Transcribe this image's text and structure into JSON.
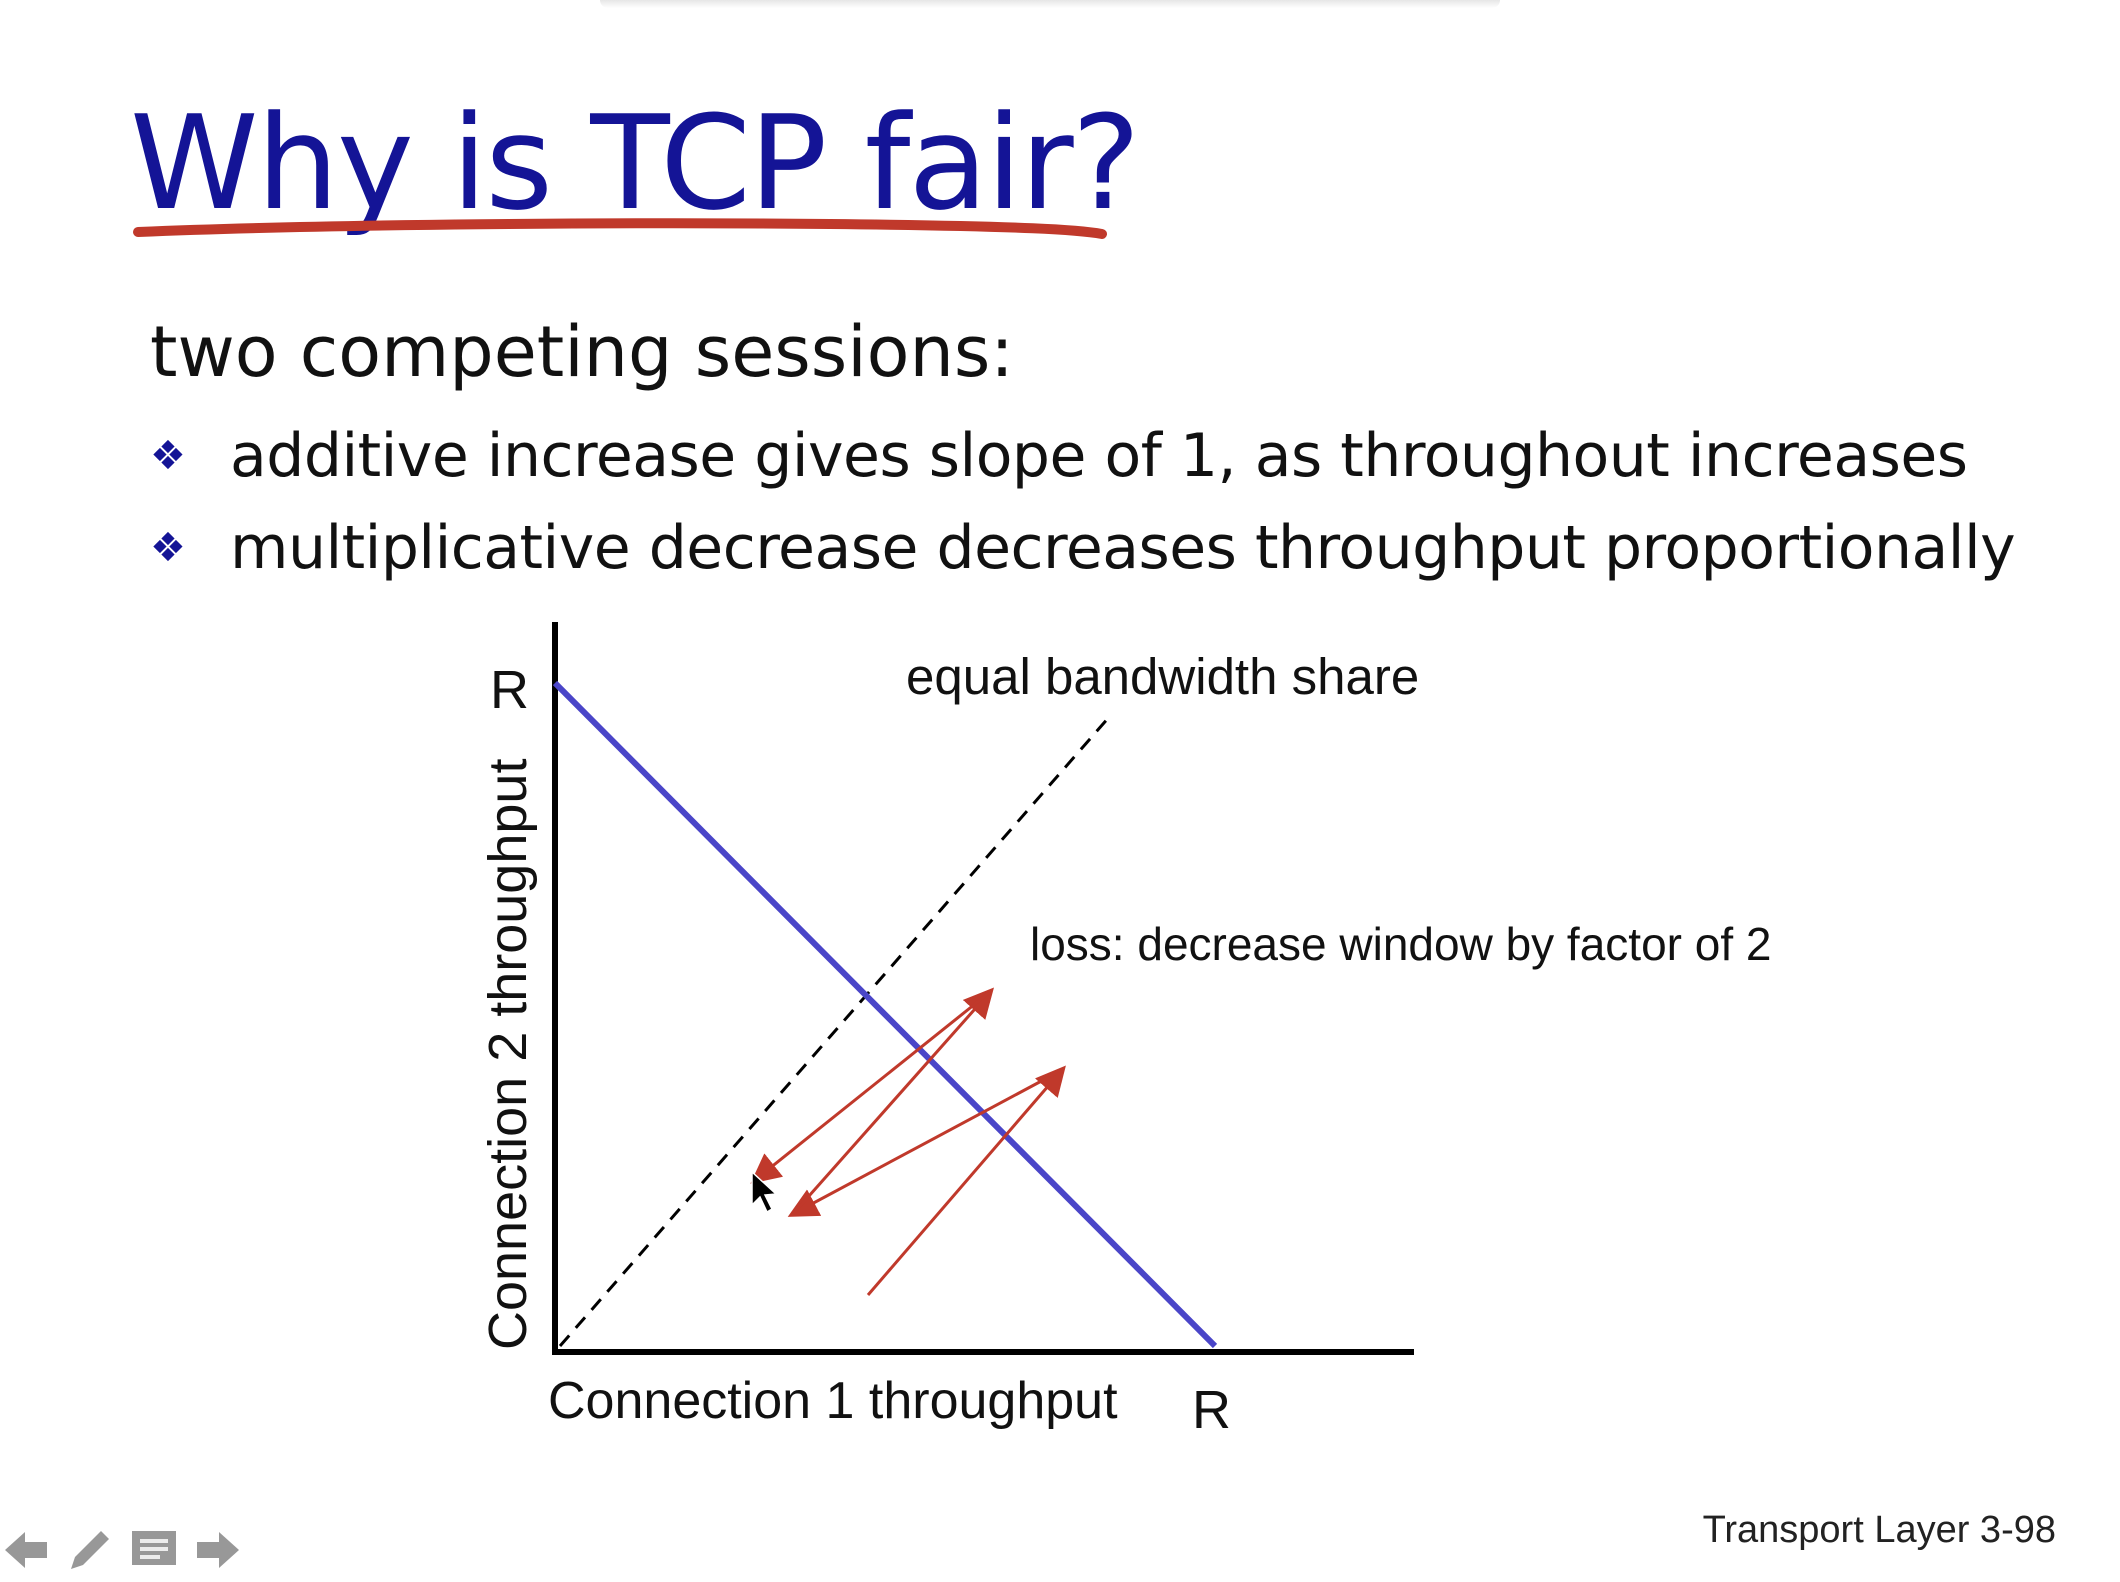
{
  "slide": {
    "title": "Why is TCP fair?",
    "subtitle": "two competing sessions:",
    "bullets": [
      "additive increase gives slope of 1, as throughout increases",
      "multiplicative decrease decreases throughput proportionally"
    ],
    "bullet_icon": "diamond-cluster-icon",
    "footer": "Transport Layer 3-98"
  },
  "diagram": {
    "y_axis_label": "Connection 2 throughput",
    "x_axis_label": "Connection 1 throughput",
    "y_max_label": "R",
    "x_max_label": "R",
    "equal_share_label": "equal bandwidth share",
    "loss_label": "loss: decrease window by factor of 2",
    "colors": {
      "capacity_line": "#4a45c8",
      "arrows": "#c0392b",
      "title": "#141496",
      "underline": "#c0392b"
    }
  },
  "navigation": {
    "icons": [
      "arrow-left-icon",
      "pen-icon",
      "slides-menu-icon",
      "arrow-right-icon"
    ]
  }
}
